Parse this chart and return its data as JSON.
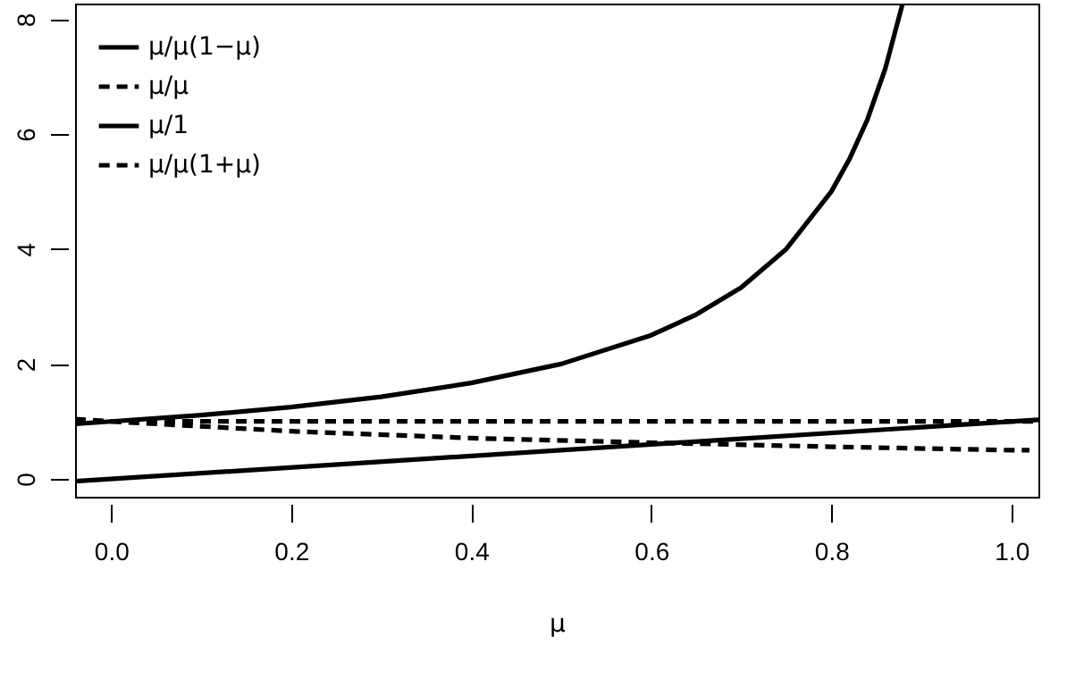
{
  "chart_data": {
    "type": "line",
    "xlabel": "μ",
    "xlim": [
      -0.04,
      1.03
    ],
    "xticks": [
      {
        "value": 0,
        "label": "0.0"
      },
      0.2,
      0.4,
      0.6,
      0.8,
      {
        "value": 1,
        "label": "1.0"
      }
    ],
    "ylim": [
      -0.31,
      8.27
    ],
    "yticks": [
      0,
      2,
      4,
      6,
      8
    ],
    "grid": false,
    "legend": "top left",
    "marker": "none",
    "series": [
      {
        "name": "μ/μ(1−μ)",
        "color": "#000000",
        "line_style": "solid",
        "x": [
          -0.04,
          0,
          0.1,
          0.2,
          0.3,
          0.4,
          0.5,
          0.6,
          0.65,
          0.7,
          0.75,
          0.8,
          0.82,
          0.84,
          0.86,
          0.879
        ],
        "values": [
          0.96,
          1,
          1.11,
          1.25,
          1.43,
          1.67,
          2,
          2.5,
          2.86,
          3.33,
          4,
          5,
          5.56,
          6.25,
          7.14,
          8.26
        ]
      },
      {
        "name": "μ/μ",
        "color": "#000000",
        "line_style": "dashed",
        "x": [
          -0.04,
          1.03
        ],
        "values": [
          1,
          1
        ]
      },
      {
        "name": "μ/1",
        "color": "#000000",
        "line_style": "solid",
        "x": [
          -0.04,
          1.03
        ],
        "values": [
          -0.04,
          1.03
        ]
      },
      {
        "name": "μ/μ(1+μ)",
        "color": "#000000",
        "line_style": "dashed",
        "x": [
          -0.04,
          0,
          0.2,
          0.4,
          0.6,
          0.8,
          1.0,
          1.02
        ],
        "values": [
          1.04,
          1,
          0.83,
          0.71,
          0.63,
          0.56,
          0.5,
          0.5
        ]
      }
    ]
  }
}
